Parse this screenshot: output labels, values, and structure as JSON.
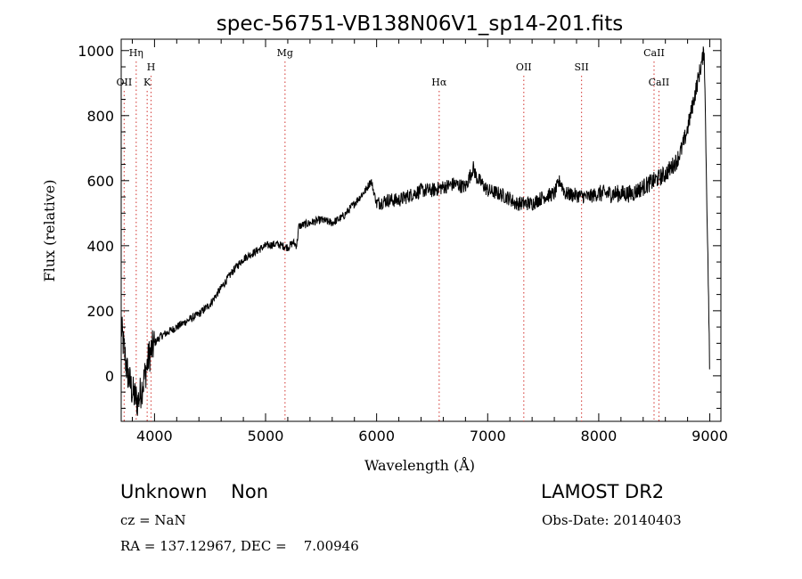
{
  "chart_data": {
    "type": "line",
    "title": "spec-56751-VB138N06V1_sp14-201.fits",
    "xlabel": "Wavelength (Å)",
    "ylabel": "Flux (relative)",
    "xlim": [
      3700,
      9100
    ],
    "ylim": [
      -140,
      1035
    ],
    "xticks": [
      4000,
      5000,
      6000,
      7000,
      8000,
      9000
    ],
    "yticks": [
      0,
      200,
      400,
      600,
      800,
      1000
    ],
    "spectrum": {
      "x": [
        3700,
        3750,
        3800,
        3850,
        3900,
        3950,
        4000,
        4050,
        4100,
        4150,
        4200,
        4300,
        4400,
        4500,
        4600,
        4700,
        4800,
        4900,
        5000,
        5100,
        5200,
        5250,
        5280,
        5300,
        5400,
        5500,
        5600,
        5700,
        5800,
        5900,
        5950,
        6000,
        6100,
        6200,
        6300,
        6400,
        6500,
        6600,
        6700,
        6800,
        6870,
        6900,
        7000,
        7100,
        7200,
        7250,
        7300,
        7400,
        7500,
        7600,
        7650,
        7700,
        7800,
        7900,
        8000,
        8100,
        8200,
        8300,
        8400,
        8500,
        8600,
        8650,
        8700,
        8750,
        8800,
        8850,
        8900,
        8950,
        9000
      ],
      "y": [
        150,
        20,
        -50,
        -80,
        -20,
        60,
        100,
        120,
        130,
        140,
        150,
        170,
        190,
        220,
        270,
        320,
        360,
        380,
        400,
        405,
        395,
        410,
        400,
        460,
        470,
        480,
        470,
        490,
        530,
        570,
        600,
        530,
        540,
        540,
        555,
        570,
        570,
        580,
        590,
        580,
        640,
        610,
        570,
        560,
        545,
        530,
        530,
        530,
        550,
        560,
        600,
        560,
        555,
        550,
        560,
        560,
        560,
        560,
        580,
        600,
        620,
        640,
        660,
        700,
        760,
        840,
        920,
        1000,
        20
      ]
    },
    "lines": [
      {
        "label": "OII",
        "wavelength": 3727,
        "row": 3
      },
      {
        "label": "Hη",
        "wavelength": 3835,
        "row": 1
      },
      {
        "label": "K",
        "wavelength": 3934,
        "row": 3
      },
      {
        "label": "H",
        "wavelength": 3969,
        "row": 2
      },
      {
        "label": "Mg",
        "wavelength": 5175,
        "row": 1
      },
      {
        "label": "Hα",
        "wavelength": 6563,
        "row": 3
      },
      {
        "label": "OII",
        "wavelength": 7325,
        "row": 2
      },
      {
        "label": "SII",
        "wavelength": 7845,
        "row": 2
      },
      {
        "label": "CaII",
        "wavelength": 8498,
        "row": 1
      },
      {
        "label": "CaII",
        "wavelength": 8542,
        "row": 3
      }
    ]
  },
  "info": {
    "class_line": "Unknown    Non",
    "survey": "LAMOST DR2",
    "cz_line": "cz = NaN",
    "obs_date_line": "Obs-Date: 20140403",
    "radec_line": "RA = 137.12967, DEC =    7.00946"
  },
  "colors": {
    "line_marker": "#d9534f",
    "spectrum": "#000000"
  }
}
